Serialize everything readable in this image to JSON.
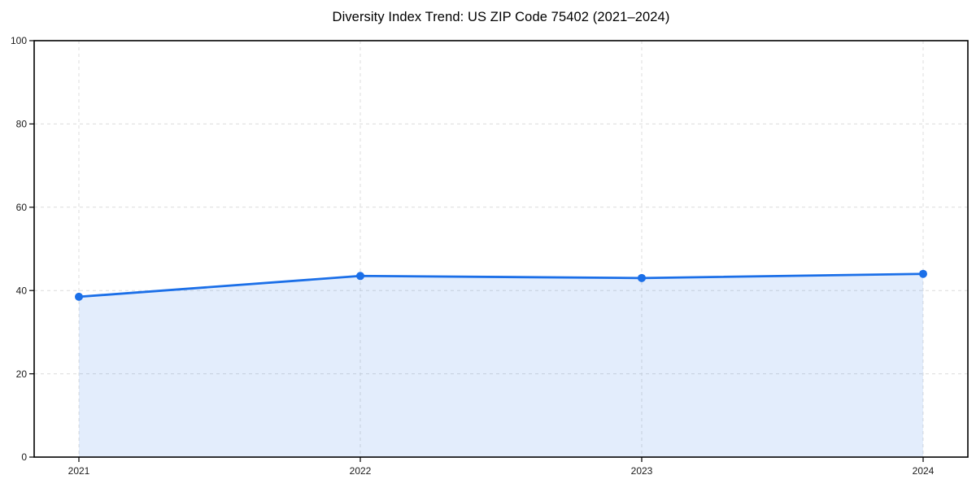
{
  "figure": {
    "background": "#ffffff"
  },
  "chart_data": {
    "type": "line",
    "title": "Diversity Index Trend: US ZIP Code 75402 (2021–2024)",
    "categories": [
      "2021",
      "2022",
      "2023",
      "2024"
    ],
    "values": [
      38.5,
      43.5,
      43.0,
      44.0
    ],
    "xlabel": "",
    "ylabel": "",
    "ylim": [
      0,
      100
    ],
    "yticks": [
      0,
      20,
      40,
      60,
      80,
      100
    ],
    "grid": "dashed-both-axes",
    "legend": "none",
    "area_fill": true,
    "marker": "circle",
    "colors": {
      "line": "#1b6fe8",
      "fill": "#1b6fe8",
      "fill_opacity": 0.12,
      "grid": "#dcdcdc",
      "axis": "#000000",
      "tick_label": "#1a1a1a",
      "title": "#000000",
      "background": "#ffffff"
    }
  }
}
